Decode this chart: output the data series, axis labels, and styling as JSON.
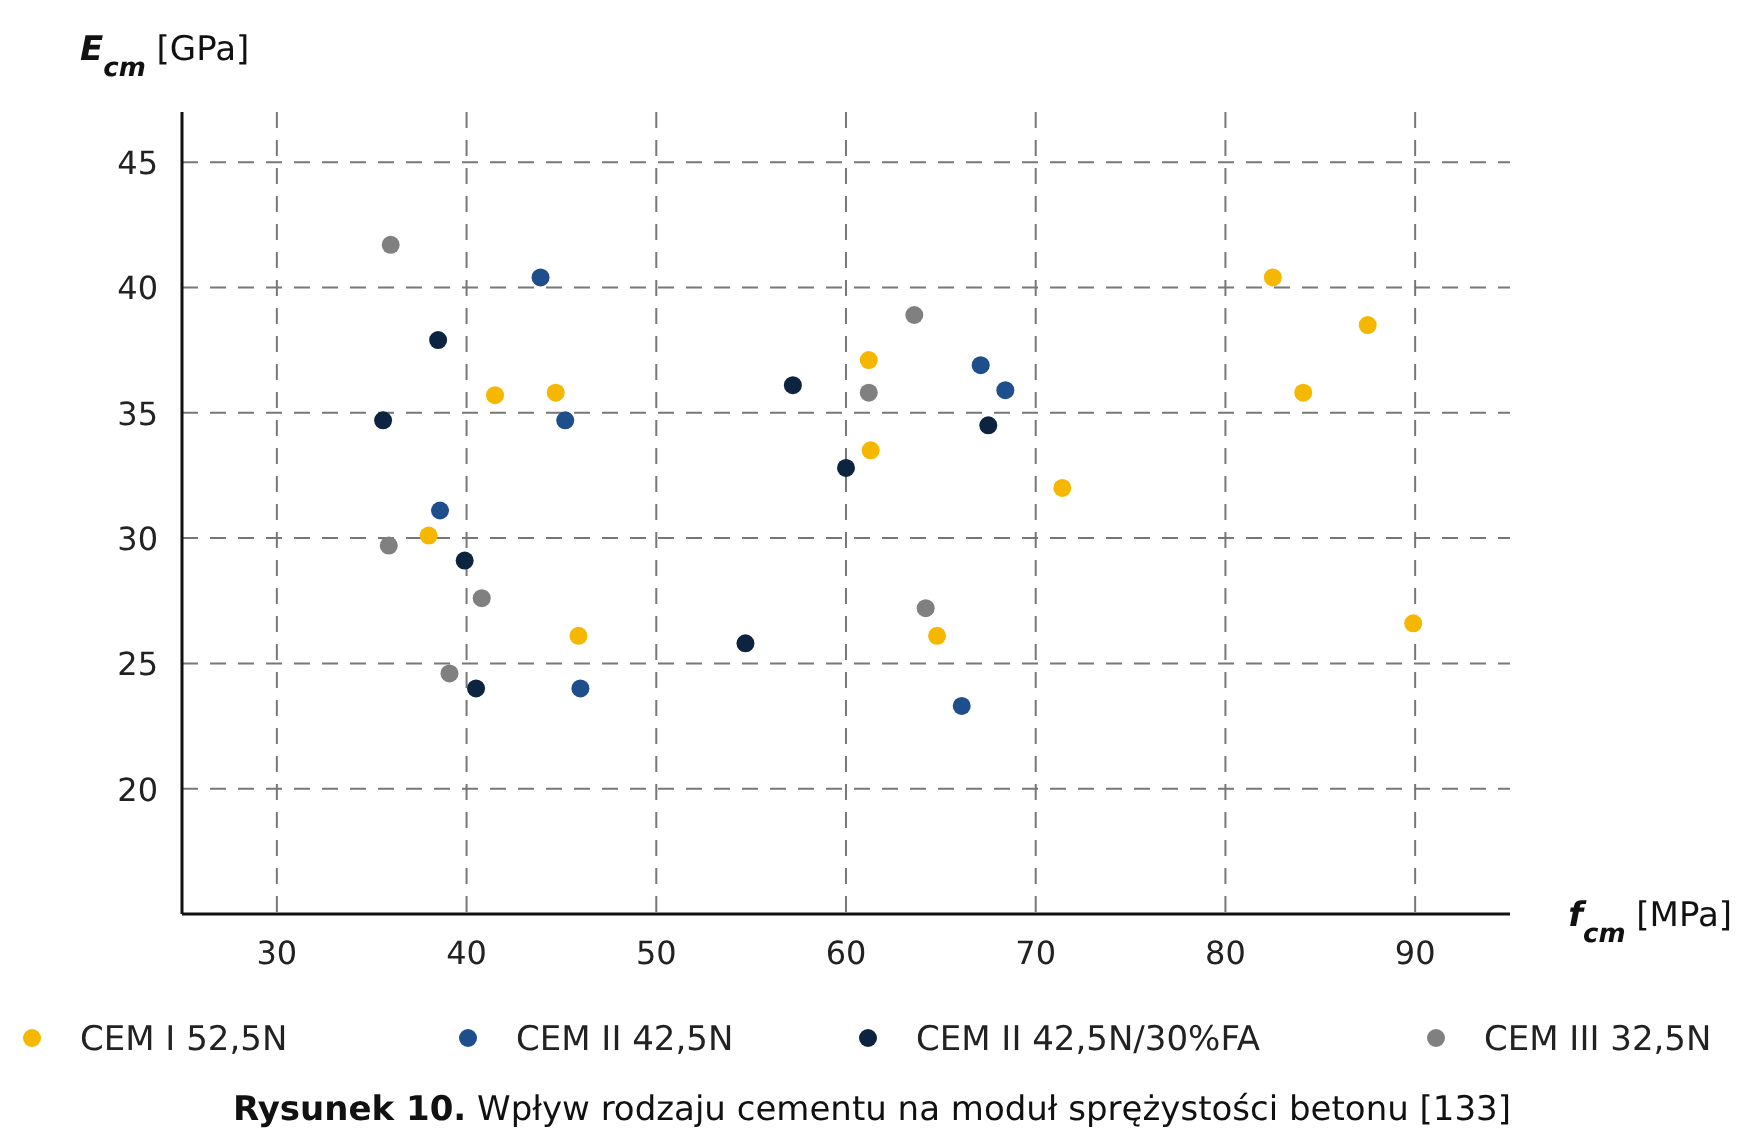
{
  "chart_data": {
    "type": "scatter",
    "title": "Rysunek 10. Wpływ rodzaju cementu na moduł sprężystości betonu [133]",
    "xlabel": "f$_{cm}$ [MPa]",
    "ylabel": "E$_{cm}$ [GPa]",
    "xlim": [
      25,
      95
    ],
    "ylim": [
      15,
      47
    ],
    "xticks": [
      30,
      40,
      50,
      60,
      70,
      80,
      90
    ],
    "yticks": [
      20,
      25,
      30,
      35,
      40,
      45
    ],
    "grid": true,
    "legend": "bottom",
    "marker": "circle",
    "series": [
      {
        "name": "CEM I 52,5N",
        "color": "#f5b700",
        "x": [
          38.0,
          41.5,
          44.7,
          45.9,
          61.2,
          61.3,
          64.8,
          71.4,
          82.5,
          84.1,
          87.5,
          89.9
        ],
        "values": [
          30.1,
          35.7,
          35.8,
          26.1,
          37.1,
          33.5,
          26.1,
          32.0,
          40.4,
          35.8,
          38.5,
          26.6
        ]
      },
      {
        "name": "CEM II 42,5N",
        "color": "#1f4e8c",
        "x": [
          43.9,
          38.6,
          45.2,
          46.0,
          67.1,
          68.4,
          66.1
        ],
        "values": [
          40.4,
          31.1,
          34.7,
          24.0,
          36.9,
          35.9,
          23.3
        ]
      },
      {
        "name": "CEM II 42,5N/30%FA",
        "color": "#0d2440",
        "x": [
          35.6,
          38.5,
          39.9,
          40.5,
          54.7,
          57.2,
          60.0,
          67.5
        ],
        "values": [
          34.7,
          37.9,
          29.1,
          24.0,
          25.8,
          36.1,
          32.8,
          34.5
        ]
      },
      {
        "name": "CEM III 32,5N",
        "color": "#808080",
        "x": [
          36.0,
          35.9,
          40.8,
          39.1,
          63.6,
          61.2,
          64.2
        ],
        "values": [
          41.7,
          29.7,
          27.6,
          24.6,
          38.9,
          35.8,
          27.2
        ]
      }
    ]
  }
}
